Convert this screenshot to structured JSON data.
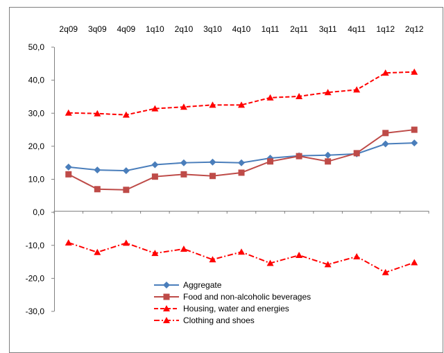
{
  "chart_data": {
    "type": "line",
    "title": "",
    "xlabel": "",
    "ylabel": "",
    "categories": [
      "2q09",
      "3q09",
      "4q09",
      "1q10",
      "2q10",
      "3q10",
      "4q10",
      "1q11",
      "2q11",
      "3q11",
      "4q11",
      "1q12",
      "2q12"
    ],
    "ylim": [
      -30,
      50
    ],
    "yticks": [
      "50,0",
      "40,0",
      "30,0",
      "20,0",
      "10,0",
      "0,0",
      "-10,0",
      "-20,0",
      "-30,0"
    ],
    "x_axis_position": "top",
    "grid": false,
    "legend_position": "bottom-center",
    "series": [
      {
        "name": "Aggregate",
        "color": "#4a7ebb",
        "marker": "diamond",
        "line_style": "solid",
        "values": [
          13.7,
          12.8,
          12.6,
          14.4,
          15.0,
          15.2,
          15.0,
          16.4,
          17.1,
          17.3,
          17.7,
          20.7,
          21.0
        ]
      },
      {
        "name": "Food and non-alcoholic beverages",
        "color": "#be4b48",
        "marker": "square",
        "line_style": "solid",
        "values": [
          11.5,
          7.0,
          6.8,
          10.8,
          11.5,
          11.0,
          12.0,
          15.4,
          17.0,
          15.4,
          17.9,
          24.0,
          25.0
        ]
      },
      {
        "name": "Housing, water and energies",
        "color": "#ff0000",
        "marker": "triangle",
        "line_style": "dashed",
        "values": [
          30.1,
          29.9,
          29.5,
          31.4,
          31.9,
          32.5,
          32.5,
          34.7,
          35.1,
          36.3,
          37.1,
          42.2,
          42.5
        ]
      },
      {
        "name": "Clothing and shoes",
        "color": "#ff0000",
        "marker": "triangle",
        "line_style": "dash-dot",
        "values": [
          -9.2,
          -12.1,
          -9.3,
          -12.4,
          -11.1,
          -14.3,
          -12.0,
          -15.4,
          -13.0,
          -15.8,
          -13.4,
          -18.2,
          -15.2
        ]
      }
    ]
  }
}
